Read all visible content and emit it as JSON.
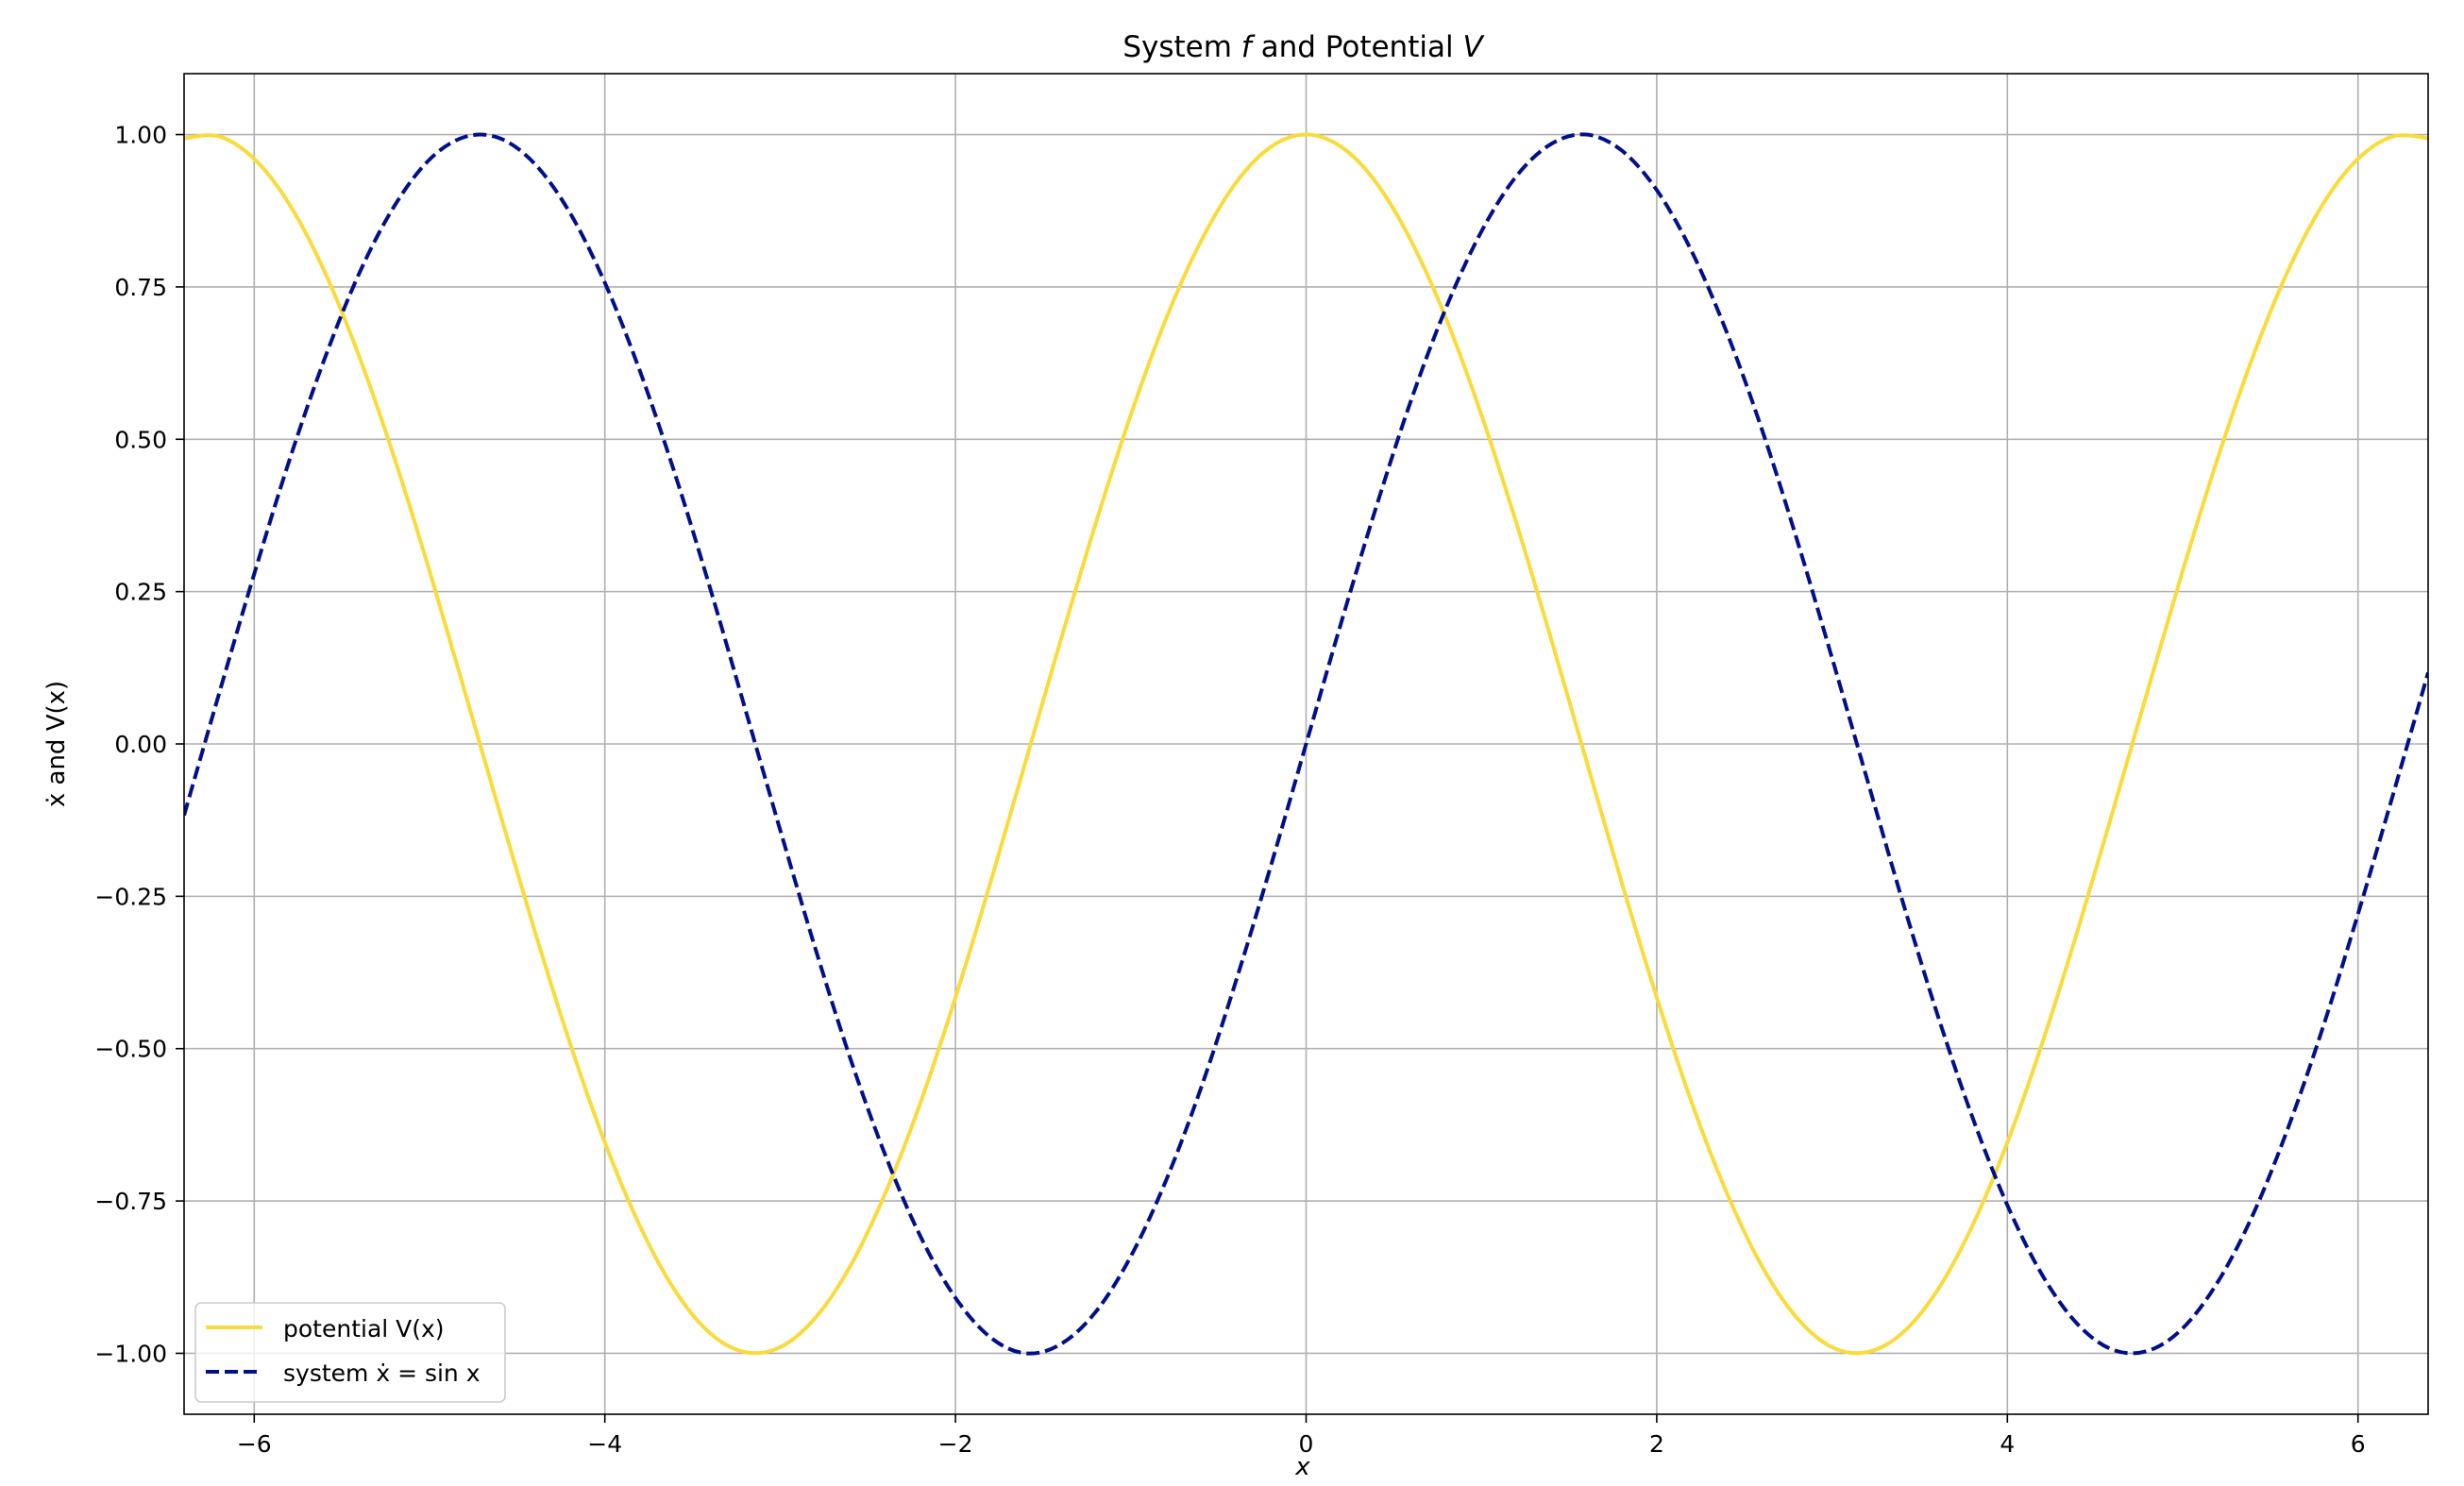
{
  "chart_data": {
    "type": "line",
    "title": "System f and Potential V",
    "xlabel": "x",
    "ylabel": "ẋ and V(x)",
    "xlim": [
      -6.4,
      6.4
    ],
    "ylim": [
      -1.1,
      1.1
    ],
    "x_ticks": [
      -6,
      -4,
      -2,
      0,
      2,
      4,
      6
    ],
    "x_tick_labels": [
      "−6",
      "−4",
      "−2",
      "0",
      "2",
      "4",
      "6"
    ],
    "y_ticks": [
      -1.0,
      -0.75,
      -0.5,
      -0.25,
      0.0,
      0.25,
      0.5,
      0.75,
      1.0
    ],
    "y_tick_labels": [
      "−1.00",
      "−0.75",
      "−0.50",
      "−0.25",
      "0.00",
      "0.25",
      "0.50",
      "0.75",
      "1.00"
    ],
    "grid": true,
    "legend_position": "lower-left",
    "series": [
      {
        "name": "potential V(x)",
        "color": "#fadb3a",
        "style": "solid",
        "x": [
          -6.4,
          -6.2,
          -6.0,
          -5.8,
          -5.6,
          -5.4,
          -5.2,
          -5.0,
          -4.8,
          -4.6,
          -4.4,
          -4.2,
          -4.0,
          -3.8,
          -3.6,
          -3.4,
          -3.2,
          -3.0,
          -2.8,
          -2.6,
          -2.4,
          -2.2,
          -2.0,
          -1.8,
          -1.6,
          -1.4,
          -1.2,
          -1.0,
          -0.8,
          -0.6,
          -0.4,
          -0.2,
          0.0,
          0.2,
          0.4,
          0.6,
          0.8,
          1.0,
          1.2,
          1.4,
          1.6,
          1.8,
          2.0,
          2.2,
          2.4,
          2.6,
          2.8,
          3.0,
          3.2,
          3.4,
          3.6,
          3.8,
          4.0,
          4.2,
          4.4,
          4.6,
          4.8,
          5.0,
          5.2,
          5.4,
          5.6,
          5.8,
          6.0,
          6.2,
          6.4
        ],
        "y": [
          0.994,
          0.997,
          0.96,
          0.886,
          0.776,
          0.635,
          0.469,
          0.284,
          0.087,
          -0.112,
          -0.307,
          -0.49,
          -0.654,
          -0.791,
          -0.897,
          -0.967,
          -0.998,
          -0.99,
          -0.942,
          -0.857,
          -0.737,
          -0.589,
          -0.416,
          -0.227,
          -0.029,
          0.17,
          0.362,
          0.54,
          0.697,
          0.825,
          0.921,
          0.98,
          1.0,
          0.98,
          0.921,
          0.825,
          0.697,
          0.54,
          0.362,
          0.17,
          -0.029,
          -0.227,
          -0.416,
          -0.589,
          -0.737,
          -0.857,
          -0.942,
          -0.99,
          -0.998,
          -0.967,
          -0.897,
          -0.791,
          -0.654,
          -0.49,
          -0.307,
          -0.112,
          0.087,
          0.284,
          0.469,
          0.635,
          0.776,
          0.886,
          0.96,
          0.997,
          0.994
        ]
      },
      {
        "name": "system ẋ = sin x",
        "color": "#00108a",
        "style": "dashed",
        "x": [
          -6.4,
          -6.2,
          -6.0,
          -5.8,
          -5.6,
          -5.4,
          -5.2,
          -5.0,
          -4.8,
          -4.6,
          -4.4,
          -4.2,
          -4.0,
          -3.8,
          -3.6,
          -3.4,
          -3.2,
          -3.0,
          -2.8,
          -2.6,
          -2.4,
          -2.2,
          -2.0,
          -1.8,
          -1.6,
          -1.4,
          -1.2,
          -1.0,
          -0.8,
          -0.6,
          -0.4,
          -0.2,
          0.0,
          0.2,
          0.4,
          0.6,
          0.8,
          1.0,
          1.2,
          1.4,
          1.6,
          1.8,
          2.0,
          2.2,
          2.4,
          2.6,
          2.8,
          3.0,
          3.2,
          3.4,
          3.6,
          3.8,
          4.0,
          4.2,
          4.4,
          4.6,
          4.8,
          5.0,
          5.2,
          5.4,
          5.6,
          5.8,
          6.0,
          6.2,
          6.4
        ],
        "y": [
          -0.117,
          0.083,
          0.279,
          0.465,
          0.631,
          0.773,
          0.883,
          0.959,
          0.996,
          0.994,
          0.952,
          0.872,
          0.757,
          0.612,
          0.443,
          0.256,
          0.058,
          -0.141,
          -0.335,
          -0.516,
          -0.675,
          -0.808,
          -0.909,
          -0.974,
          -1.0,
          -0.985,
          -0.932,
          -0.841,
          -0.717,
          -0.565,
          -0.389,
          -0.199,
          0.0,
          0.199,
          0.389,
          0.565,
          0.717,
          0.841,
          0.932,
          0.985,
          1.0,
          0.974,
          0.909,
          0.808,
          0.675,
          0.516,
          0.335,
          0.141,
          -0.058,
          -0.256,
          -0.443,
          -0.612,
          -0.757,
          -0.872,
          -0.952,
          -0.994,
          -0.996,
          -0.959,
          -0.883,
          -0.773,
          -0.631,
          -0.465,
          -0.279,
          -0.083,
          0.117
        ]
      }
    ]
  }
}
